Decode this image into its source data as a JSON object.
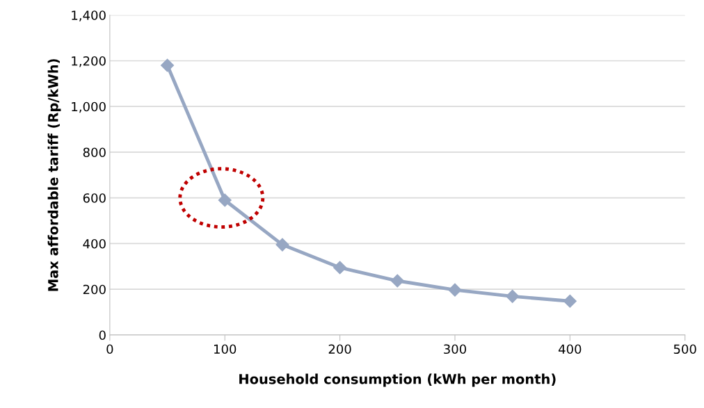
{
  "chart_data": {
    "type": "line",
    "xlabel": "Household consumption (kWh per month)",
    "ylabel": "Max affordable tariff (Rp/kWh)",
    "x": [
      50,
      100,
      150,
      200,
      250,
      300,
      350,
      400
    ],
    "series": [
      {
        "color": "#97a7c3",
        "values": [
          1180,
          590,
          395,
          295,
          237,
          197,
          169,
          148
        ]
      }
    ],
    "xlim": [
      0,
      500
    ],
    "xticks": [
      0,
      100,
      200,
      300,
      400,
      500
    ],
    "ylim": [
      0,
      1400
    ],
    "yticks": [
      {
        "value": 0,
        "label": "0"
      },
      {
        "value": 200,
        "label": "200"
      },
      {
        "value": 400,
        "label": "400"
      },
      {
        "value": 600,
        "label": "600"
      },
      {
        "value": 800,
        "label": "800"
      },
      {
        "value": 1000,
        "label": "1,000"
      },
      {
        "value": 1200,
        "label": "1,200"
      },
      {
        "value": 1400,
        "label": "1,400"
      }
    ],
    "grid": "y",
    "marker": "diamond",
    "line_style": "solid",
    "legend": false
  }
}
